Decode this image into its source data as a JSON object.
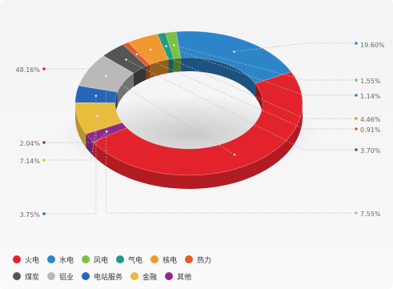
{
  "chart_data": {
    "type": "pie",
    "variant": "3d-donut",
    "series": [
      {
        "name": "火电",
        "value": 48.16,
        "label": "48.16%",
        "color": "#e3232c"
      },
      {
        "name": "水电",
        "value": 19.6,
        "label": "19.60%",
        "color": "#2d85c9"
      },
      {
        "name": "风电",
        "value": 1.55,
        "label": "1.55%",
        "color": "#7cc142"
      },
      {
        "name": "气电",
        "value": 1.14,
        "label": "1.14%",
        "color": "#1f9b86"
      },
      {
        "name": "核电",
        "value": 4.46,
        "label": "4.46%",
        "color": "#f0982f"
      },
      {
        "name": "热力",
        "value": 0.91,
        "label": "0.91%",
        "color": "#e25b29"
      },
      {
        "name": "煤炭",
        "value": 3.7,
        "label": "3.70%",
        "color": "#555555"
      },
      {
        "name": "铝业",
        "value": 7.55,
        "label": "7.55%",
        "color": "#b9b9b9"
      },
      {
        "name": "电站服务",
        "value": 3.75,
        "label": "3.75%",
        "color": "#2666b8"
      },
      {
        "name": "金融",
        "value": 7.14,
        "label": "7.14%",
        "color": "#e8bd3c"
      },
      {
        "name": "其他",
        "value": 2.04,
        "label": "2.04%",
        "color": "#8e2a8a"
      }
    ],
    "legend": {
      "position": "bottom",
      "rows": [
        [
          "火电",
          "水电",
          "风电",
          "气电",
          "核电",
          "热力"
        ],
        [
          "煤炭",
          "铝业",
          "电站服务",
          "金融",
          "其他"
        ]
      ]
    }
  }
}
